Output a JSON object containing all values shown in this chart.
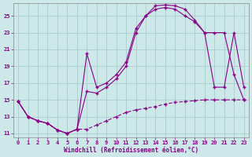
{
  "bg_color": "#cce8e8",
  "line_color": "#880088",
  "grid_color": "#aacccc",
  "xlabel": "Windchill (Refroidissement éolien,°C)",
  "xlabel_color": "#880088",
  "tick_color": "#880088",
  "xlim": [
    -0.5,
    23.5
  ],
  "ylim": [
    10.5,
    26.5
  ],
  "xticks": [
    0,
    1,
    2,
    3,
    4,
    5,
    6,
    7,
    8,
    9,
    10,
    11,
    12,
    13,
    14,
    15,
    16,
    17,
    18,
    19,
    20,
    21,
    22,
    23
  ],
  "yticks": [
    11,
    13,
    15,
    17,
    19,
    21,
    23,
    25
  ],
  "curve1_x": [
    0,
    1,
    2,
    3,
    4,
    5,
    6,
    7,
    8,
    9,
    10,
    11,
    12,
    13,
    14,
    15,
    16,
    17,
    18,
    19,
    20,
    21,
    22,
    23
  ],
  "curve1_y": [
    14.8,
    13.0,
    12.5,
    12.2,
    11.4,
    11.0,
    11.5,
    20.5,
    16.5,
    17.0,
    18.0,
    19.5,
    23.5,
    25.0,
    26.2,
    26.3,
    26.2,
    25.8,
    24.5,
    23.0,
    16.5,
    16.5,
    23.0,
    16.5
  ],
  "curve2_x": [
    0,
    1,
    2,
    3,
    4,
    5,
    6,
    7,
    8,
    9,
    10,
    11,
    12,
    13,
    14,
    15,
    16,
    17,
    18,
    19,
    20,
    21,
    22,
    23
  ],
  "curve2_y": [
    14.8,
    13.0,
    12.5,
    12.2,
    11.4,
    11.0,
    11.5,
    11.5,
    12.0,
    12.5,
    13.0,
    13.5,
    13.8,
    14.0,
    14.2,
    14.5,
    14.7,
    14.8,
    14.9,
    15.0,
    15.0,
    15.0,
    15.0,
    15.0
  ],
  "curve3_x": [
    0,
    1,
    2,
    3,
    4,
    5,
    6,
    7,
    8,
    9,
    10,
    11,
    12,
    13,
    14,
    15,
    16,
    17,
    18,
    19,
    20,
    21,
    22,
    23
  ],
  "curve3_y": [
    14.8,
    13.0,
    12.5,
    12.2,
    11.4,
    11.0,
    11.5,
    16.0,
    15.8,
    16.5,
    17.5,
    19.0,
    23.0,
    25.0,
    25.8,
    26.0,
    25.8,
    25.0,
    24.3,
    23.0,
    23.0,
    23.0,
    18.0,
    15.0
  ]
}
